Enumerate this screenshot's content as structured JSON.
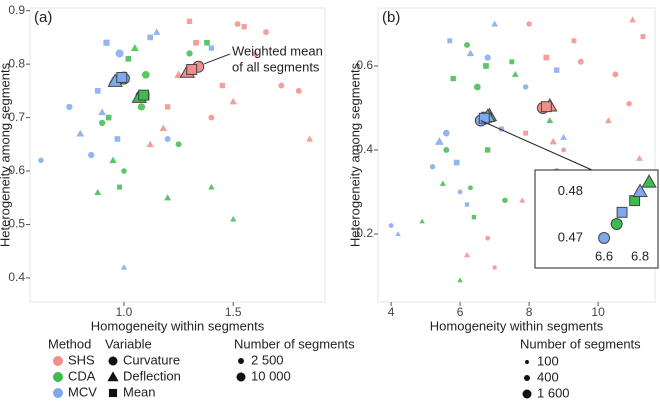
{
  "chart_data": [
    {
      "type": "scatter",
      "panel": "(a)",
      "xlabel": "Homogeneity within segments",
      "ylabel": "Heterogeneity among segments",
      "xlim": [
        0.57,
        1.92
      ],
      "ylim": [
        0.355,
        0.905
      ],
      "xticks": [
        {
          "value": 1,
          "label": "1.0"
        },
        1.5
      ],
      "yticks": [
        0.4,
        0.5,
        0.6,
        0.7,
        0.8,
        0.9
      ],
      "annotation": [
        "Weighted mean",
        "of all segments"
      ],
      "size_legend": {
        "title": "Number of segments",
        "items": [
          {
            "value": 2500,
            "label": "2 500"
          },
          {
            "value": 10000,
            "label": "10 000"
          }
        ]
      },
      "series": [
        {
          "method": "SHS",
          "variable": "Curvature",
          "color": "#f28e8a",
          "shape": "circle",
          "x": [
            1.35,
            1.52,
            1.65,
            1.72,
            1.4,
            1.8
          ],
          "y": [
            0.8,
            0.875,
            0.86,
            0.76,
            0.7,
            0.75
          ],
          "sizes": [
            3000,
            2500,
            2500,
            2500,
            2500,
            2500
          ],
          "mean": {
            "x": 1.34,
            "y": 0.795
          }
        },
        {
          "method": "SHS",
          "variable": "Deflection",
          "color": "#f28e8a",
          "shape": "triangle",
          "x": [
            1.25,
            1.5,
            1.18,
            1.6,
            1.12,
            1.85
          ],
          "y": [
            0.78,
            0.73,
            0.68,
            0.82,
            0.65,
            0.66
          ],
          "sizes": [
            4000,
            2500,
            2500,
            2500,
            2500,
            2000
          ],
          "mean": {
            "x": 1.29,
            "y": 0.785
          }
        },
        {
          "method": "SHS",
          "variable": "Mean",
          "color": "#f28e8a",
          "shape": "square",
          "x": [
            1.33,
            1.45,
            1.2,
            1.55,
            1.3
          ],
          "y": [
            0.84,
            0.76,
            0.72,
            0.87,
            0.88
          ],
          "sizes": [
            3000,
            2500,
            2500,
            2500,
            2500
          ],
          "mean": {
            "x": 1.31,
            "y": 0.79
          }
        },
        {
          "method": "CDA",
          "variable": "Curvature",
          "color": "#3dbb4f",
          "shape": "circle",
          "x": [
            1.1,
            1.08,
            1.3,
            0.9,
            1.0,
            1.25
          ],
          "y": [
            0.78,
            0.72,
            0.82,
            0.69,
            0.6,
            0.65
          ],
          "sizes": [
            6000,
            5000,
            3000,
            3000,
            2000,
            2500
          ],
          "mean": {
            "x": 1.08,
            "y": 0.74
          }
        },
        {
          "method": "CDA",
          "variable": "Deflection",
          "color": "#3dbb4f",
          "shape": "triangle",
          "x": [
            0.95,
            1.2,
            1.4,
            1.5,
            0.88,
            1.05
          ],
          "y": [
            0.62,
            0.55,
            0.57,
            0.51,
            0.56,
            0.83
          ],
          "sizes": [
            2500,
            2000,
            1500,
            1500,
            2000,
            3000
          ],
          "mean": {
            "x": 1.07,
            "y": 0.738
          }
        },
        {
          "method": "CDA",
          "variable": "Mean",
          "color": "#3dbb4f",
          "shape": "square",
          "x": [
            1.1,
            1.38,
            0.93,
            1.02,
            0.98
          ],
          "y": [
            0.74,
            0.84,
            0.7,
            0.81,
            0.57
          ],
          "sizes": [
            9000,
            3000,
            3000,
            3000,
            2000
          ],
          "mean": {
            "x": 1.09,
            "y": 0.742
          }
        },
        {
          "method": "MCV",
          "variable": "Curvature",
          "color": "#80a8f0",
          "shape": "circle",
          "x": [
            0.98,
            0.75,
            0.85,
            1.0,
            0.62,
            1.2
          ],
          "y": [
            0.82,
            0.72,
            0.63,
            0.78,
            0.62,
            0.66
          ],
          "sizes": [
            7000,
            3000,
            3000,
            5000,
            2000,
            2500
          ],
          "mean": {
            "x": 1.0,
            "y": 0.773
          }
        },
        {
          "method": "MCV",
          "variable": "Deflection",
          "color": "#80a8f0",
          "shape": "triangle",
          "x": [
            0.95,
            0.9,
            1.15,
            0.8,
            1.0
          ],
          "y": [
            0.77,
            0.71,
            0.86,
            0.67,
            0.42
          ],
          "sizes": [
            5000,
            3000,
            2500,
            3000,
            1500
          ],
          "mean": {
            "x": 0.96,
            "y": 0.768
          }
        },
        {
          "method": "MCV",
          "variable": "Mean",
          "color": "#80a8f0",
          "shape": "square",
          "x": [
            0.92,
            1.12,
            0.97,
            0.88,
            1.4
          ],
          "y": [
            0.84,
            0.85,
            0.66,
            0.75,
            0.83
          ],
          "sizes": [
            4000,
            3000,
            3000,
            3000,
            2500
          ],
          "mean": {
            "x": 0.99,
            "y": 0.775
          }
        }
      ]
    },
    {
      "type": "scatter",
      "panel": "(b)",
      "xlabel": "Homogeneity within segments",
      "ylabel": "Heterogeneity among segments",
      "xlim": [
        3.62,
        11.65
      ],
      "ylim": [
        0.038,
        0.738
      ],
      "xticks": [
        4,
        6,
        8,
        10
      ],
      "yticks": [
        0.2,
        0.4,
        0.6
      ],
      "inset": {
        "xlim": [
          6.533,
          6.883
        ],
        "ylim": [
          0.4685,
          0.4835
        ],
        "xticks": [
          6.6,
          6.8
        ],
        "yticks": [
          0.47,
          0.48
        ]
      },
      "size_legend": {
        "title": "Number of segments",
        "items": [
          {
            "value": 100,
            "label": "100"
          },
          {
            "value": 400,
            "label": "400"
          },
          {
            "value": 1600,
            "label": "1 600"
          }
        ]
      },
      "series": [
        {
          "method": "SHS",
          "variable": "Curvature",
          "color": "#f28e8a",
          "shape": "circle",
          "x": [
            9.5,
            10.5,
            9.0,
            8.0,
            6.8,
            10.9
          ],
          "y": [
            0.61,
            0.58,
            0.4,
            0.7,
            0.19,
            0.51
          ],
          "sizes": [
            400,
            400,
            200,
            300,
            200,
            300
          ],
          "mean": {
            "x": 8.4,
            "y": 0.5
          }
        },
        {
          "method": "SHS",
          "variable": "Deflection",
          "color": "#f28e8a",
          "shape": "triangle",
          "x": [
            8.7,
            11.0,
            7.8,
            10.3,
            6.2,
            11.2
          ],
          "y": [
            0.42,
            0.71,
            0.28,
            0.47,
            0.15,
            0.38
          ],
          "sizes": [
            400,
            300,
            200,
            300,
            200,
            300
          ],
          "mean": {
            "x": 8.6,
            "y": 0.505
          }
        },
        {
          "method": "SHS",
          "variable": "Mean",
          "color": "#f28e8a",
          "shape": "square",
          "x": [
            8.5,
            9.3,
            11.3,
            7.9,
            7.0
          ],
          "y": [
            0.62,
            0.66,
            0.67,
            0.44,
            0.12
          ],
          "sizes": [
            500,
            300,
            300,
            300,
            150
          ],
          "mean": {
            "x": 8.5,
            "y": 0.503
          }
        },
        {
          "method": "CDA",
          "variable": "Curvature",
          "color": "#3dbb4f",
          "shape": "circle",
          "x": [
            6.5,
            5.6,
            6.2,
            7.3,
            8.8,
            6.3
          ],
          "y": [
            0.55,
            0.4,
            0.65,
            0.28,
            0.35,
            0.31
          ],
          "sizes": [
            600,
            400,
            400,
            300,
            300,
            200
          ],
          "mean": {
            "x": 6.67,
            "y": 0.473
          }
        },
        {
          "method": "CDA",
          "variable": "Deflection",
          "color": "#3dbb4f",
          "shape": "triangle",
          "x": [
            4.9,
            6.0,
            8.6,
            5.5,
            9.2,
            7.6
          ],
          "y": [
            0.23,
            0.09,
            0.47,
            0.32,
            0.26,
            0.58
          ],
          "sizes": [
            150,
            150,
            300,
            200,
            200,
            300
          ],
          "mean": {
            "x": 6.85,
            "y": 0.482
          }
        },
        {
          "method": "CDA",
          "variable": "Mean",
          "color": "#3dbb4f",
          "shape": "square",
          "x": [
            6.75,
            6.8,
            5.8,
            7.5,
            6.4
          ],
          "y": [
            0.6,
            0.4,
            0.57,
            0.61,
            0.24
          ],
          "sizes": [
            500,
            400,
            400,
            300,
            200
          ],
          "mean": {
            "x": 6.77,
            "y": 0.478
          }
        },
        {
          "method": "MCV",
          "variable": "Curvature",
          "color": "#80a8f0",
          "shape": "circle",
          "x": [
            5.6,
            4.0,
            6.8,
            5.2,
            7.9,
            6.0
          ],
          "y": [
            0.44,
            0.22,
            0.62,
            0.36,
            0.55,
            0.3
          ],
          "sizes": [
            600,
            200,
            500,
            300,
            300,
            200
          ],
          "mean": {
            "x": 6.6,
            "y": 0.47
          }
        },
        {
          "method": "MCV",
          "variable": "Deflection",
          "color": "#80a8f0",
          "shape": "triangle",
          "x": [
            5.4,
            7.0,
            6.3,
            9.0,
            4.2
          ],
          "y": [
            0.42,
            0.7,
            0.63,
            0.43,
            0.2
          ],
          "sizes": [
            700,
            300,
            400,
            300,
            150
          ],
          "mean": {
            "x": 6.8,
            "y": 0.48
          }
        },
        {
          "method": "MCV",
          "variable": "Mean",
          "color": "#80a8f0",
          "shape": "square",
          "x": [
            5.9,
            8.8,
            5.7,
            6.2,
            7.2
          ],
          "y": [
            0.37,
            0.59,
            0.66,
            0.27,
            0.45
          ],
          "sizes": [
            500,
            400,
            300,
            200,
            300
          ],
          "mean": {
            "x": 6.7,
            "y": 0.4755
          }
        }
      ]
    }
  ],
  "legend": {
    "method": {
      "title": "Method",
      "items": [
        {
          "label": "SHS",
          "color": "#f28e8a"
        },
        {
          "label": "CDA",
          "color": "#3dbb4f"
        },
        {
          "label": "MCV",
          "color": "#80a8f0"
        }
      ]
    },
    "variable": {
      "title": "Variable",
      "items": [
        {
          "label": "Curvature",
          "shape": "circle"
        },
        {
          "label": "Deflection",
          "shape": "triangle"
        },
        {
          "label": "Mean",
          "shape": "square"
        }
      ]
    }
  }
}
